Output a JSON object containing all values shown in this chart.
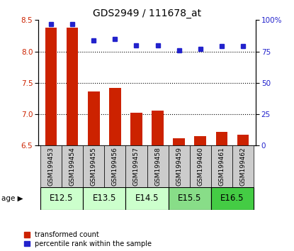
{
  "title": "GDS2949 / 111678_at",
  "samples": [
    "GSM199453",
    "GSM199454",
    "GSM199455",
    "GSM199456",
    "GSM199457",
    "GSM199458",
    "GSM199459",
    "GSM199460",
    "GSM199461",
    "GSM199462"
  ],
  "bar_values": [
    8.38,
    8.38,
    7.36,
    7.42,
    7.02,
    7.06,
    6.62,
    6.65,
    6.72,
    6.67
  ],
  "dot_values": [
    97,
    97,
    84,
    85,
    80,
    80,
    76,
    77,
    79,
    79
  ],
  "ylim_left": [
    6.5,
    8.5
  ],
  "ylim_right": [
    0,
    100
  ],
  "yticks_left": [
    6.5,
    7.0,
    7.5,
    8.0,
    8.5
  ],
  "yticks_right": [
    0,
    25,
    50,
    75,
    100
  ],
  "age_groups": [
    {
      "label": "E12.5",
      "cols": [
        0,
        1
      ],
      "color": "#ccffcc"
    },
    {
      "label": "E13.5",
      "cols": [
        2,
        3
      ],
      "color": "#ccffcc"
    },
    {
      "label": "E14.5",
      "cols": [
        4,
        5
      ],
      "color": "#ccffcc"
    },
    {
      "label": "E15.5",
      "cols": [
        6,
        7
      ],
      "color": "#88dd88"
    },
    {
      "label": "E16.5",
      "cols": [
        8,
        9
      ],
      "color": "#44cc44"
    }
  ],
  "bar_color": "#cc2200",
  "dot_color": "#2222cc",
  "bar_bottom": 6.5,
  "bg_plot": "#ffffff",
  "bg_label_row": "#cccccc",
  "label_fontsize": 6.5,
  "age_fontsize": 8.5,
  "title_fontsize": 10,
  "legend_fontsize": 7
}
